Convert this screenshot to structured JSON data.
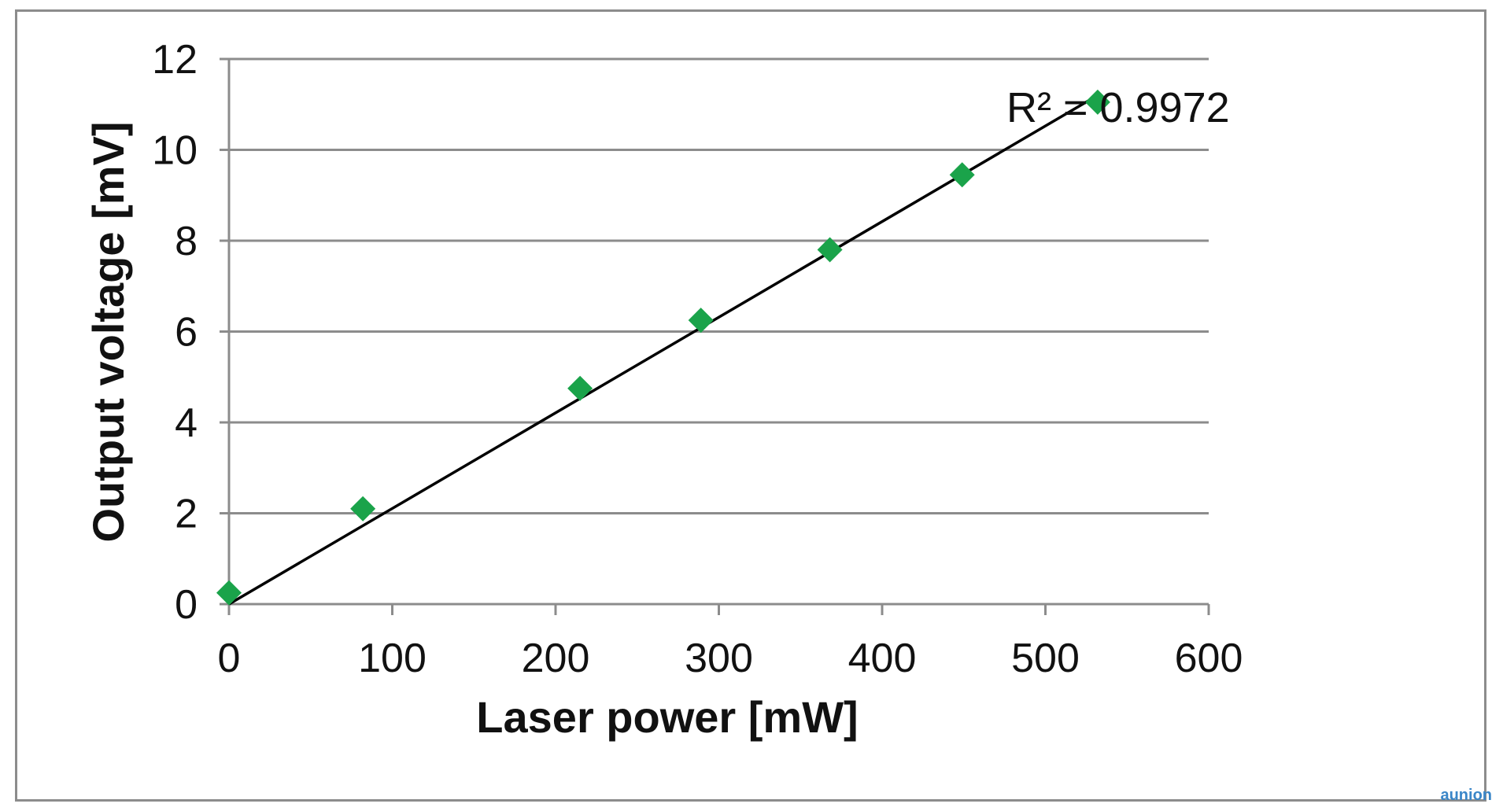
{
  "chart_data": {
    "type": "scatter",
    "title": "",
    "xlabel": "Laser power [mW]",
    "ylabel": "Output voltage [mV]",
    "xlim": [
      0,
      600
    ],
    "ylim": [
      0,
      12
    ],
    "x_ticks": [
      0,
      100,
      200,
      300,
      400,
      500,
      600
    ],
    "y_ticks": [
      0,
      2,
      4,
      6,
      8,
      10,
      12
    ],
    "x_tick_labels": [
      "0",
      "100",
      "200",
      "300",
      "400",
      "500",
      "600"
    ],
    "y_tick_labels": [
      "0",
      "2",
      "4",
      "6",
      "8",
      "10",
      "12"
    ],
    "grid": "horizontal",
    "legend": "none",
    "series": [
      {
        "x": [
          0,
          82,
          215,
          289,
          368,
          449,
          532
        ],
        "y": [
          0.25,
          2.1,
          4.75,
          6.25,
          7.8,
          9.45,
          11.05
        ],
        "marker": "diamond",
        "color": "#1aa34a"
      }
    ],
    "trendline": {
      "type": "linear",
      "x": [
        0,
        532
      ],
      "y": [
        0.0,
        11.2
      ],
      "color": "#000000"
    },
    "annotations": [
      {
        "text": "R² = 0.9972"
      }
    ]
  },
  "watermark": {
    "text": "aunion"
  }
}
